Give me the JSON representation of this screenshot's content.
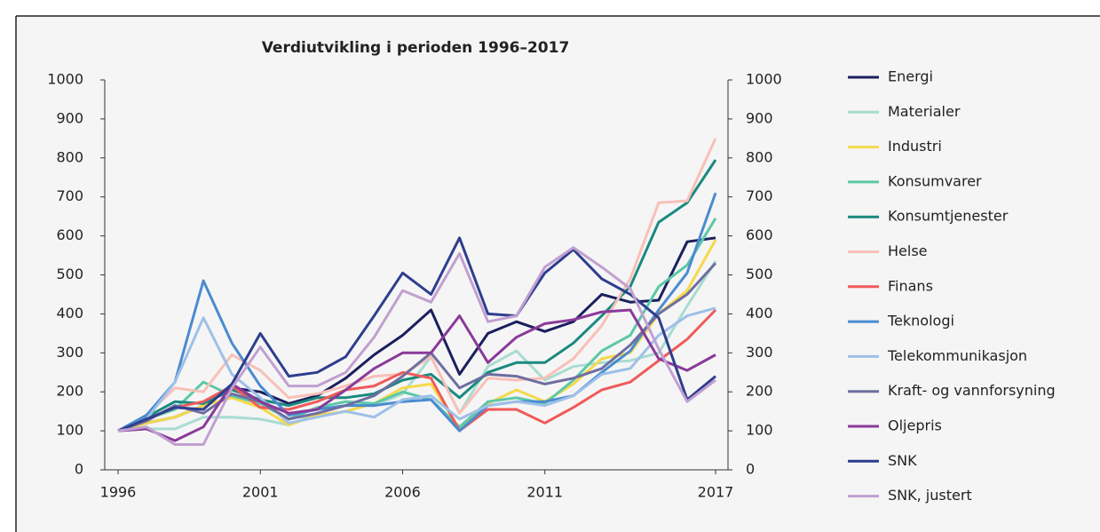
{
  "chart_data": {
    "type": "line",
    "title": "Verdiutvikling i perioden 1996–2017",
    "x": [
      1996,
      1997,
      1998,
      1999,
      2000,
      2001,
      2002,
      2003,
      2004,
      2005,
      2006,
      2007,
      2008,
      2009,
      2010,
      2011,
      2012,
      2013,
      2014,
      2015,
      2016,
      2017
    ],
    "xlim": [
      1996,
      2017
    ],
    "xticks": [
      1996,
      2001,
      2006,
      2011,
      2017
    ],
    "ylim": [
      0,
      1000
    ],
    "yticks": [
      0,
      100,
      200,
      300,
      400,
      500,
      600,
      700,
      800,
      900,
      1000
    ],
    "y2lim": [
      0,
      1000
    ],
    "y2ticks": [
      0,
      100,
      200,
      300,
      400,
      500,
      600,
      700,
      800,
      900,
      1000
    ],
    "legend": "right",
    "series": [
      {
        "name": "Energi",
        "color": "#1b1f5e",
        "values": [
          100,
          120,
          135,
          165,
          210,
          200,
          170,
          190,
          235,
          295,
          345,
          410,
          245,
          350,
          380,
          355,
          380,
          450,
          430,
          435,
          585,
          595
        ]
      },
      {
        "name": "Materialer",
        "color": "#a8dcd1",
        "values": [
          100,
          105,
          105,
          135,
          135,
          130,
          115,
          145,
          165,
          165,
          195,
          290,
          145,
          265,
          305,
          230,
          265,
          275,
          280,
          300,
          420,
          535
        ]
      },
      {
        "name": "Industri",
        "color": "#f5d94a",
        "values": [
          100,
          120,
          135,
          165,
          185,
          160,
          115,
          140,
          150,
          170,
          210,
          220,
          105,
          170,
          205,
          175,
          220,
          285,
          300,
          400,
          460,
          590
        ]
      },
      {
        "name": "Konsumvarer",
        "color": "#5cc8a8",
        "values": [
          100,
          130,
          155,
          225,
          190,
          170,
          130,
          160,
          175,
          170,
          200,
          180,
          110,
          175,
          185,
          170,
          230,
          305,
          345,
          470,
          525,
          645
        ]
      },
      {
        "name": "Konsumtjenester",
        "color": "#1a8a80",
        "values": [
          100,
          135,
          175,
          170,
          205,
          180,
          165,
          185,
          185,
          195,
          230,
          245,
          185,
          250,
          275,
          275,
          325,
          395,
          470,
          635,
          685,
          795
        ]
      },
      {
        "name": "Helse",
        "color": "#f8c0b8",
        "values": [
          100,
          140,
          210,
          200,
          295,
          255,
          185,
          195,
          215,
          240,
          245,
          290,
          145,
          235,
          230,
          235,
          285,
          370,
          490,
          685,
          690,
          850
        ]
      },
      {
        "name": "Finans",
        "color": "#f05a5a",
        "values": [
          100,
          130,
          160,
          175,
          215,
          160,
          155,
          175,
          205,
          215,
          250,
          235,
          100,
          155,
          155,
          120,
          160,
          205,
          225,
          280,
          335,
          410
        ]
      },
      {
        "name": "Teknologi",
        "color": "#4a8bd0",
        "values": [
          100,
          140,
          225,
          485,
          325,
          215,
          140,
          155,
          165,
          165,
          175,
          180,
          100,
          165,
          175,
          175,
          190,
          250,
          305,
          410,
          505,
          710
        ]
      },
      {
        "name": "Telekommunikasjon",
        "color": "#9ec0e8",
        "values": [
          100,
          130,
          225,
          390,
          245,
          185,
          120,
          135,
          150,
          135,
          180,
          190,
          130,
          165,
          175,
          165,
          190,
          245,
          260,
          345,
          395,
          415
        ]
      },
      {
        "name": "Kraft- og vannforsyning",
        "color": "#6e6ea0",
        "values": [
          100,
          125,
          165,
          145,
          195,
          175,
          130,
          145,
          165,
          190,
          240,
          300,
          210,
          245,
          240,
          220,
          235,
          260,
          320,
          400,
          450,
          530
        ]
      },
      {
        "name": "Oljepris",
        "color": "#8a3a9a",
        "values": [
          100,
          105,
          75,
          110,
          220,
          175,
          145,
          155,
          205,
          260,
          300,
          300,
          395,
          275,
          340,
          375,
          385,
          405,
          410,
          285,
          255,
          295
        ]
      },
      {
        "name": "SNK",
        "color": "#2e3e8e",
        "values": [
          100,
          130,
          160,
          155,
          220,
          350,
          240,
          250,
          290,
          395,
          505,
          450,
          595,
          400,
          395,
          505,
          565,
          490,
          450,
          390,
          180,
          240
        ]
      },
      {
        "name": "SNK, justert",
        "color": "#c0a0d0",
        "values": [
          100,
          110,
          65,
          65,
          210,
          315,
          215,
          215,
          250,
          340,
          460,
          430,
          555,
          380,
          395,
          520,
          570,
          520,
          465,
          310,
          175,
          230
        ]
      }
    ]
  }
}
